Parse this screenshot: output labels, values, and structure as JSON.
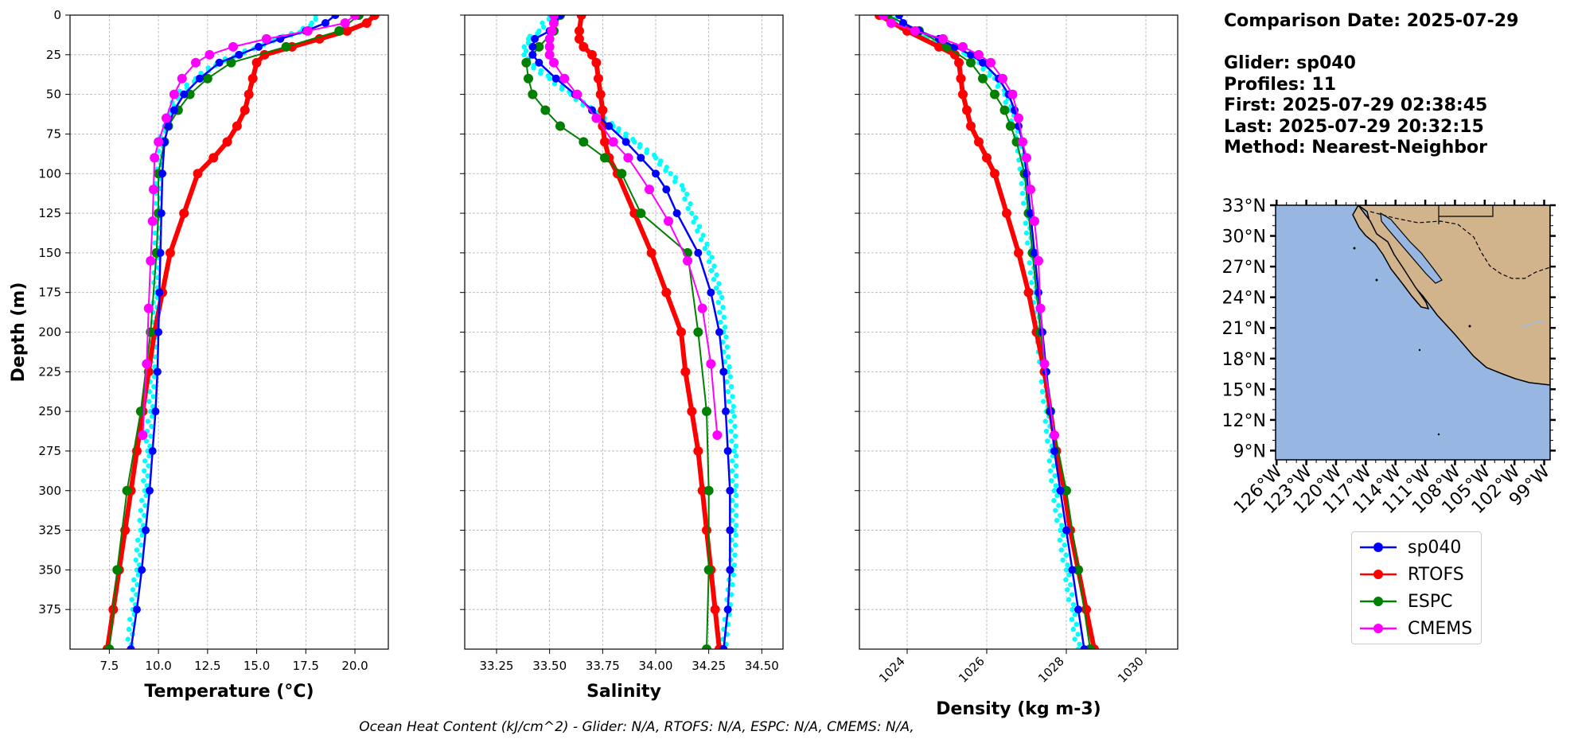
{
  "info": {
    "comparison_date": "Comparison Date: 2025-07-29",
    "glider": "Glider: sp040",
    "profiles": "Profiles: 11",
    "first": "First: 2025-07-29 02:38:45",
    "last": "Last: 2025-07-29 20:32:15",
    "method": "Method: Nearest-Neighbor"
  },
  "footer": "Ocean Heat Content (kJ/cm^2) - Glider: N/A,  RTOFS: N/A,  ESPC: N/A,  CMEMS: N/A,",
  "colors": {
    "glider": "#0000ff",
    "glider_raw": "#00ffff",
    "rtofs": "#ff0000",
    "espc": "#008000",
    "cmems": "#ff00ff",
    "ocean": "#97b6e1",
    "land": "#d2b48c"
  },
  "legend": [
    {
      "label": "sp040",
      "color": "#0000ff"
    },
    {
      "label": "RTOFS",
      "color": "#ff0000"
    },
    {
      "label": "ESPC",
      "color": "#008000"
    },
    {
      "label": "CMEMS",
      "color": "#ff00ff"
    }
  ],
  "chart_data": [
    {
      "type": "line",
      "xlabel": "Temperature (°C)",
      "ylabel": "Depth (m)",
      "xlim": [
        5.5,
        21.7
      ],
      "ylim": [
        400,
        0
      ],
      "xticks": [
        7.5,
        10.0,
        12.5,
        15.0,
        17.5,
        20.0
      ],
      "xtick_labels": [
        "7.5",
        "10.0",
        "12.5",
        "15.0",
        "17.5",
        "20.0"
      ],
      "yticks": [
        0,
        25,
        50,
        75,
        100,
        125,
        150,
        175,
        200,
        225,
        250,
        275,
        300,
        325,
        350,
        375
      ],
      "ytick_labels": [
        "0",
        "25",
        "50",
        "75",
        "100",
        "125",
        "150",
        "175",
        "200",
        "225",
        "250",
        "275",
        "300",
        "325",
        "350",
        "375"
      ],
      "grid": true,
      "series": [
        {
          "name": "sp040 raw",
          "color": "#00ffff",
          "depth": [
            0,
            5,
            10,
            15,
            20,
            25,
            30,
            40,
            50,
            60,
            70,
            80,
            100,
            125,
            150,
            175,
            200,
            225,
            250,
            275,
            300,
            325,
            350,
            375,
            400
          ],
          "values": [
            18.0,
            17.8,
            17.3,
            16.0,
            15.0,
            14.0,
            13.0,
            11.9,
            11.0,
            10.6,
            10.3,
            10.15,
            10.0,
            9.95,
            9.9,
            9.85,
            9.8,
            9.7,
            9.6,
            9.45,
            9.3,
            9.1,
            8.9,
            8.7,
            8.5
          ]
        },
        {
          "name": "sp040",
          "color": "#0000ff",
          "depth": [
            0,
            5,
            10,
            15,
            20,
            25,
            30,
            40,
            50,
            60,
            70,
            80,
            100,
            125,
            150,
            175,
            200,
            225,
            250,
            275,
            300,
            325,
            350,
            375,
            400
          ],
          "values": [
            19.0,
            18.5,
            17.5,
            16.2,
            15.1,
            14.1,
            13.1,
            12.1,
            11.3,
            10.8,
            10.5,
            10.3,
            10.2,
            10.15,
            10.1,
            10.05,
            10.0,
            9.95,
            9.85,
            9.7,
            9.55,
            9.35,
            9.15,
            8.9,
            8.6
          ]
        },
        {
          "name": "RTOFS",
          "color": "#ff0000",
          "depth": [
            0,
            5,
            10,
            15,
            20,
            25,
            30,
            40,
            50,
            60,
            70,
            80,
            90,
            100,
            125,
            150,
            175,
            200,
            225,
            250,
            275,
            300,
            325,
            350,
            375,
            400
          ],
          "values": [
            21.0,
            20.6,
            19.6,
            18.2,
            16.8,
            15.4,
            15.0,
            14.8,
            14.6,
            14.4,
            14.0,
            13.5,
            12.8,
            12.0,
            11.3,
            10.6,
            10.2,
            9.8,
            9.5,
            9.2,
            8.9,
            8.6,
            8.3,
            8.0,
            7.7,
            7.4
          ]
        },
        {
          "name": "ESPC",
          "color": "#008000",
          "depth": [
            0,
            10,
            20,
            30,
            40,
            50,
            60,
            70,
            80,
            100,
            125,
            150,
            200,
            250,
            300,
            350,
            400
          ],
          "values": [
            20.2,
            19.2,
            16.5,
            13.7,
            12.5,
            11.6,
            11.0,
            10.5,
            10.3,
            10.0,
            10.0,
            9.9,
            9.6,
            9.1,
            8.4,
            7.9,
            7.5
          ]
        },
        {
          "name": "CMEMS",
          "color": "#ff00ff",
          "depth": [
            0,
            5,
            10,
            15,
            20,
            25,
            30,
            40,
            50,
            65,
            80,
            90,
            110,
            130,
            155,
            185,
            220,
            265
          ],
          "values": [
            20.0,
            19.5,
            17.6,
            15.5,
            13.8,
            12.6,
            11.9,
            11.2,
            10.8,
            10.4,
            10.0,
            9.8,
            9.75,
            9.7,
            9.6,
            9.5,
            9.4,
            9.2
          ]
        }
      ]
    },
    {
      "type": "line",
      "xlabel": "Salinity",
      "xlim": [
        33.1,
        34.6
      ],
      "ylim": [
        400,
        0
      ],
      "xticks": [
        33.25,
        33.5,
        33.75,
        34.0,
        34.25,
        34.5
      ],
      "xtick_labels": [
        "33.25",
        "33.50",
        "33.75",
        "34.00",
        "34.25",
        "34.50"
      ],
      "grid": true,
      "series": [
        {
          "name": "sp040 raw",
          "color": "#00ffff",
          "depth": [
            0,
            10,
            15,
            20,
            25,
            30,
            40,
            50,
            60,
            70,
            80,
            90,
            100,
            110,
            125,
            150,
            175,
            200,
            225,
            250,
            275,
            300,
            325,
            350,
            375,
            400
          ],
          "values": [
            33.5,
            33.45,
            33.4,
            33.38,
            33.38,
            33.4,
            33.5,
            33.6,
            33.7,
            33.8,
            33.9,
            34.0,
            34.07,
            34.13,
            34.17,
            34.25,
            34.3,
            34.32,
            34.34,
            34.36,
            34.37,
            34.37,
            34.37,
            34.36,
            34.34,
            34.32
          ]
        },
        {
          "name": "sp040",
          "color": "#0000ff",
          "depth": [
            0,
            10,
            15,
            20,
            25,
            30,
            40,
            50,
            60,
            70,
            80,
            90,
            100,
            110,
            125,
            150,
            175,
            200,
            225,
            250,
            275,
            300,
            325,
            350,
            375,
            400
          ],
          "values": [
            33.55,
            33.5,
            33.43,
            33.42,
            33.42,
            33.45,
            33.53,
            33.62,
            33.7,
            33.78,
            33.86,
            33.93,
            34.0,
            34.05,
            34.1,
            34.2,
            34.26,
            34.3,
            34.32,
            34.33,
            34.34,
            34.35,
            34.35,
            34.35,
            34.34,
            34.32
          ]
        },
        {
          "name": "RTOFS",
          "color": "#ff0000",
          "depth": [
            0,
            10,
            15,
            20,
            25,
            30,
            40,
            50,
            60,
            70,
            80,
            90,
            100,
            125,
            150,
            175,
            200,
            225,
            250,
            275,
            300,
            325,
            350,
            375,
            400
          ],
          "values": [
            33.65,
            33.64,
            33.64,
            33.66,
            33.7,
            33.72,
            33.73,
            33.74,
            33.75,
            33.75,
            33.76,
            33.78,
            33.82,
            33.9,
            33.98,
            34.05,
            34.12,
            34.14,
            34.17,
            34.2,
            34.22,
            34.24,
            34.26,
            34.28,
            34.3
          ]
        },
        {
          "name": "ESPC",
          "color": "#008000",
          "depth": [
            0,
            10,
            20,
            30,
            40,
            50,
            60,
            70,
            80,
            90,
            100,
            125,
            150,
            200,
            250,
            300,
            350,
            400
          ],
          "values": [
            33.55,
            33.52,
            33.45,
            33.39,
            33.4,
            33.42,
            33.48,
            33.55,
            33.66,
            33.76,
            33.84,
            33.93,
            34.15,
            34.2,
            34.24,
            34.25,
            34.25,
            34.24
          ]
        },
        {
          "name": "CMEMS",
          "color": "#ff00ff",
          "depth": [
            0,
            5,
            10,
            15,
            20,
            25,
            30,
            40,
            50,
            65,
            80,
            90,
            110,
            130,
            155,
            185,
            220,
            265
          ],
          "values": [
            33.52,
            33.52,
            33.51,
            33.5,
            33.5,
            33.5,
            33.52,
            33.57,
            33.63,
            33.72,
            33.8,
            33.87,
            33.97,
            34.06,
            34.15,
            34.22,
            34.26,
            34.29
          ]
        }
      ]
    },
    {
      "type": "line",
      "xlabel": "Density (kg m-3)",
      "xlim": [
        1022.8,
        1030.8
      ],
      "ylim": [
        400,
        0
      ],
      "xticks": [
        1024,
        1026,
        1028,
        1030
      ],
      "xtick_labels": [
        "1024",
        "1026",
        "1028",
        "1030"
      ],
      "grid": true,
      "series": [
        {
          "name": "sp040 raw",
          "color": "#00ffff",
          "depth": [
            0,
            5,
            10,
            15,
            20,
            25,
            30,
            40,
            50,
            60,
            70,
            80,
            100,
            125,
            150,
            175,
            200,
            225,
            250,
            275,
            300,
            325,
            350,
            375,
            400
          ],
          "values": [
            1023.6,
            1023.7,
            1024.0,
            1024.5,
            1025.0,
            1025.5,
            1025.8,
            1026.2,
            1026.45,
            1026.6,
            1026.7,
            1026.8,
            1026.9,
            1027.0,
            1027.1,
            1027.2,
            1027.3,
            1027.4,
            1027.5,
            1027.6,
            1027.7,
            1027.85,
            1028.0,
            1028.15,
            1028.3
          ]
        },
        {
          "name": "sp040",
          "color": "#0000ff",
          "depth": [
            0,
            5,
            10,
            15,
            20,
            25,
            30,
            40,
            50,
            60,
            70,
            80,
            100,
            125,
            150,
            175,
            200,
            225,
            250,
            275,
            300,
            325,
            350,
            375,
            400
          ],
          "values": [
            1023.8,
            1023.9,
            1024.3,
            1024.8,
            1025.2,
            1025.6,
            1025.9,
            1026.3,
            1026.55,
            1026.7,
            1026.8,
            1026.9,
            1027.0,
            1027.1,
            1027.2,
            1027.3,
            1027.4,
            1027.5,
            1027.6,
            1027.7,
            1027.85,
            1028.0,
            1028.15,
            1028.3,
            1028.45
          ]
        },
        {
          "name": "RTOFS",
          "color": "#ff0000",
          "depth": [
            0,
            10,
            20,
            25,
            30,
            40,
            50,
            60,
            70,
            80,
            90,
            100,
            125,
            150,
            175,
            200,
            225,
            250,
            275,
            300,
            325,
            350,
            375,
            400
          ],
          "values": [
            1023.3,
            1024.0,
            1024.8,
            1025.2,
            1025.3,
            1025.35,
            1025.4,
            1025.5,
            1025.6,
            1025.8,
            1026.0,
            1026.2,
            1026.5,
            1026.8,
            1027.05,
            1027.25,
            1027.45,
            1027.6,
            1027.75,
            1027.95,
            1028.1,
            1028.3,
            1028.5,
            1028.7
          ]
        },
        {
          "name": "ESPC",
          "color": "#008000",
          "depth": [
            0,
            10,
            20,
            30,
            40,
            50,
            60,
            70,
            80,
            100,
            125,
            150,
            200,
            250,
            300,
            350,
            400
          ],
          "values": [
            1023.5,
            1024.3,
            1025.0,
            1025.6,
            1025.9,
            1026.2,
            1026.45,
            1026.6,
            1026.75,
            1026.95,
            1027.05,
            1027.15,
            1027.35,
            1027.6,
            1028.0,
            1028.3,
            1028.6
          ]
        },
        {
          "name": "CMEMS",
          "color": "#ff00ff",
          "depth": [
            0,
            5,
            10,
            15,
            20,
            25,
            30,
            40,
            50,
            65,
            80,
            90,
            110,
            130,
            155,
            185,
            220,
            265
          ],
          "values": [
            1023.4,
            1023.6,
            1024.2,
            1024.9,
            1025.4,
            1025.8,
            1026.1,
            1026.4,
            1026.65,
            1026.8,
            1026.9,
            1027.0,
            1027.1,
            1027.2,
            1027.3,
            1027.35,
            1027.45,
            1027.7
          ]
        }
      ]
    }
  ],
  "map": {
    "lat_labels": [
      "33°N",
      "30°N",
      "27°N",
      "24°N",
      "21°N",
      "18°N",
      "15°N",
      "12°N",
      "9°N"
    ],
    "lon_labels": [
      "126°W",
      "123°W",
      "120°W",
      "117°W",
      "114°W",
      "111°W",
      "108°W",
      "105°W",
      "102°W",
      "99°W"
    ],
    "lat_values": [
      33,
      30,
      27,
      24,
      21,
      18,
      15,
      12,
      9
    ],
    "lon_values": [
      -126,
      -123,
      -120,
      -117,
      -114,
      -111,
      -108,
      -105,
      -102,
      -99
    ],
    "extent": {
      "lon_min": -126.1,
      "lon_max": -98.4,
      "lat_min": 8.1,
      "lat_max": 33.0
    }
  }
}
